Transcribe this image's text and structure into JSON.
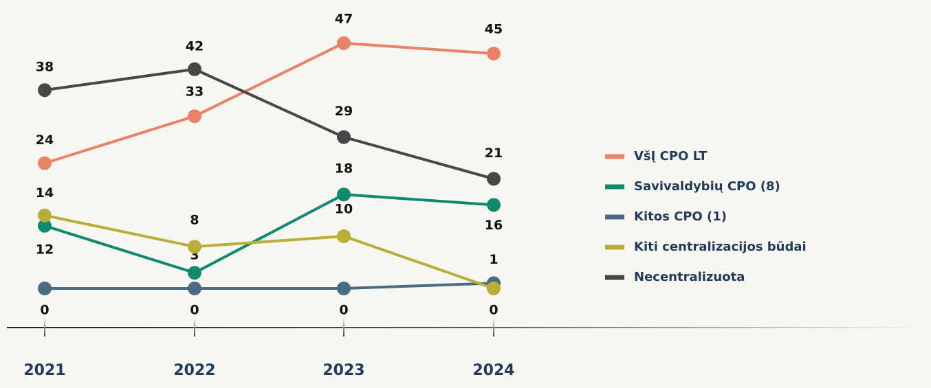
{
  "chart_data": {
    "type": "line",
    "categories": [
      "2021",
      "2022",
      "2023",
      "2024"
    ],
    "series": [
      {
        "name": "VšĮ CPO LT",
        "color": "#e8836a",
        "values": [
          24,
          33,
          47,
          45
        ]
      },
      {
        "name": "Savivaldybių CPO (8)",
        "color": "#0e8a6e",
        "values": [
          12,
          3,
          18,
          16
        ]
      },
      {
        "name": "Kitos CPO (1)",
        "color": "#4b6b82",
        "values": [
          0,
          0,
          0,
          1
        ]
      },
      {
        "name": "Kiti centralizacijos būdai",
        "color": "#b8ae38",
        "values": [
          14,
          8,
          10,
          0
        ]
      },
      {
        "name": "Necentralizuota",
        "color": "#474747",
        "values": [
          38,
          42,
          29,
          21
        ]
      }
    ],
    "legend": "right"
  }
}
